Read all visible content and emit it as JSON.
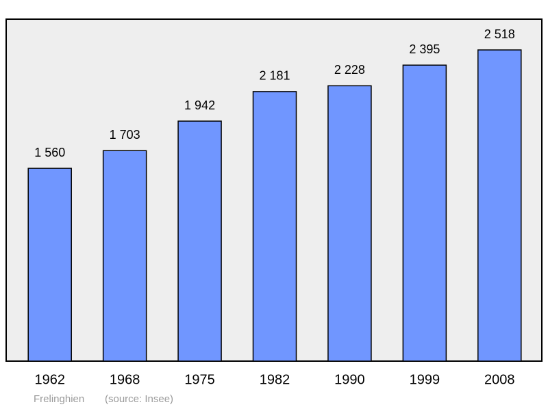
{
  "chart_data": {
    "type": "bar",
    "categories": [
      "1962",
      "1968",
      "1975",
      "1982",
      "1990",
      "1999",
      "2008"
    ],
    "values": [
      1560,
      1703,
      1942,
      2181,
      2228,
      2395,
      2518
    ],
    "value_labels": [
      "1 560",
      "1 703",
      "1 942",
      "2 181",
      "2 228",
      "2 395",
      "2 518"
    ],
    "color": "#7096ff",
    "caption": "Frelinghien",
    "source": "(source: Insee)"
  }
}
